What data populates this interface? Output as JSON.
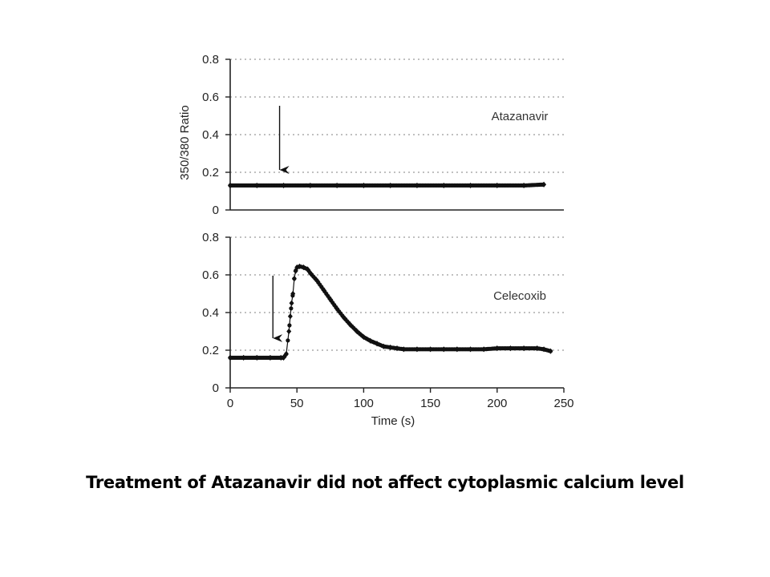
{
  "caption": "Treatment of Atazanavir did not affect cytoplasmic calcium level",
  "chart_data": [
    {
      "type": "scatter",
      "label": "Atazanavir",
      "ylabel": "350/380 Ratio",
      "xlabel": "",
      "xlim": [
        0,
        250
      ],
      "ylim": [
        0,
        0.8
      ],
      "yticks": [
        "0",
        "0.2",
        "0.4",
        "0.6",
        "0.8"
      ],
      "xticks": [],
      "grid": "horizontal dotted",
      "arrow_at_x": 37,
      "series": [
        {
          "x": [
            0,
            20,
            40,
            60,
            80,
            100,
            120,
            140,
            160,
            180,
            200,
            220,
            235
          ],
          "y": [
            0.13,
            0.13,
            0.13,
            0.13,
            0.13,
            0.13,
            0.13,
            0.13,
            0.13,
            0.13,
            0.13,
            0.13,
            0.135
          ]
        }
      ]
    },
    {
      "type": "scatter",
      "label": "Celecoxib",
      "ylabel": "",
      "xlabel": "Time (s)",
      "xlim": [
        0,
        250
      ],
      "ylim": [
        0,
        0.8
      ],
      "yticks": [
        "0",
        "0.2",
        "0.4",
        "0.6",
        "0.8"
      ],
      "xticks": [
        "0",
        "50",
        "100",
        "150",
        "200",
        "250"
      ],
      "grid": "horizontal dotted",
      "arrow_at_x": 32,
      "series": [
        {
          "x": [
            0,
            10,
            20,
            30,
            38,
            40,
            42,
            44,
            45,
            46,
            47,
            48,
            49,
            50,
            52,
            55,
            58,
            60,
            65,
            70,
            75,
            80,
            85,
            90,
            95,
            100,
            105,
            110,
            115,
            120,
            125,
            130,
            140,
            150,
            160,
            170,
            180,
            190,
            200,
            210,
            220,
            230,
            235,
            240
          ],
          "y": [
            0.16,
            0.16,
            0.16,
            0.16,
            0.16,
            0.16,
            0.18,
            0.3,
            0.38,
            0.45,
            0.5,
            0.58,
            0.62,
            0.64,
            0.645,
            0.64,
            0.63,
            0.61,
            0.57,
            0.52,
            0.47,
            0.42,
            0.375,
            0.335,
            0.3,
            0.27,
            0.25,
            0.235,
            0.22,
            0.215,
            0.21,
            0.205,
            0.205,
            0.205,
            0.205,
            0.205,
            0.205,
            0.205,
            0.21,
            0.21,
            0.21,
            0.21,
            0.205,
            0.195
          ]
        }
      ]
    }
  ]
}
